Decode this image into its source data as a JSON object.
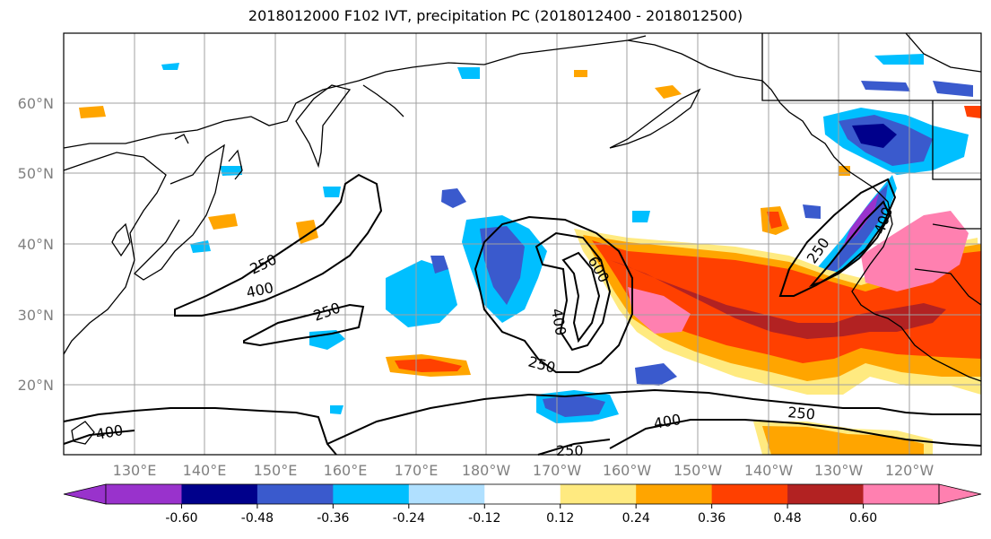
{
  "title": "2018012000 F102 IVT, precipitation PC (2018012400 - 2018012500)",
  "lat_labels": [
    "20°N",
    "30°N",
    "40°N",
    "50°N",
    "60°N"
  ],
  "lon_labels": [
    "130°E",
    "140°E",
    "150°E",
    "160°E",
    "170°E",
    "180°W",
    "170°W",
    "160°W",
    "150°W",
    "140°W",
    "130°W",
    "120°W"
  ],
  "colorbar": {
    "colors": [
      "#9932CC",
      "#00008B",
      "#3A5ACD",
      "#00BFFF",
      "#B0E0FF",
      "#FFFFFF",
      "#FFEA80",
      "#FFA500",
      "#FF4000",
      "#B22222",
      "#FF80B0"
    ],
    "tick_labels": [
      "-0.60",
      "-0.48",
      "-0.36",
      "-0.24",
      "-0.12",
      "0.12",
      "0.24",
      "0.36",
      "0.48",
      "0.60"
    ]
  },
  "contour_labels": [
    {
      "text": "250",
      "name": "contour-label-250-west"
    },
    {
      "text": "400",
      "name": "contour-label-400-west"
    },
    {
      "text": "250",
      "name": "contour-label-250-mid"
    },
    {
      "text": "600",
      "name": "contour-label-600"
    },
    {
      "text": "400",
      "name": "contour-label-400-center"
    },
    {
      "text": "250",
      "name": "contour-label-250-south"
    },
    {
      "text": "250",
      "name": "contour-label-250-coast"
    },
    {
      "text": "400",
      "name": "contour-label-400-coast"
    },
    {
      "text": "400",
      "name": "contour-label-400-sw"
    },
    {
      "text": "400",
      "name": "contour-label-400-se"
    },
    {
      "text": "250",
      "name": "contour-label-250-se"
    },
    {
      "text": "250",
      "name": "contour-label-250-bottom"
    }
  ]
}
